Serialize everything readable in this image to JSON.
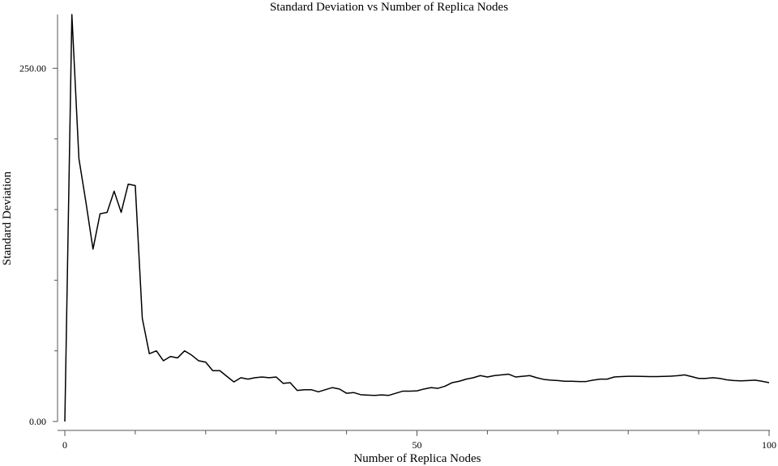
{
  "chart_data": {
    "type": "line",
    "title": "Standard Deviation vs Number of Replica Nodes",
    "xlabel": "Number of Replica Nodes",
    "ylabel": "Standard Deviation",
    "xlim": [
      0,
      100
    ],
    "ylim": [
      0,
      288
    ],
    "x_major_ticks": [
      0,
      50,
      100
    ],
    "x_major_tick_labels": [
      "0",
      "50",
      "100"
    ],
    "x_minor_ticks": [
      10,
      20,
      30,
      40,
      60,
      70,
      80,
      90
    ],
    "y_major_ticks": [
      0,
      250
    ],
    "y_major_tick_labels": [
      "0.00",
      "250.00"
    ],
    "y_minor_ticks": [
      50,
      100,
      150,
      200
    ],
    "grid": false,
    "legend": "none",
    "series": [
      {
        "color": "#000000",
        "x": [
          0,
          1,
          2,
          3,
          4,
          5,
          6,
          7,
          8,
          9,
          10,
          11,
          12,
          13,
          14,
          15,
          16,
          17,
          18,
          19,
          20,
          21,
          22,
          23,
          24,
          25,
          26,
          27,
          28,
          29,
          30,
          31,
          32,
          33,
          34,
          35,
          36,
          37,
          38,
          39,
          40,
          41,
          42,
          43,
          44,
          45,
          46,
          47,
          48,
          49,
          50,
          51,
          52,
          53,
          54,
          55,
          56,
          57,
          58,
          59,
          60,
          61,
          62,
          63,
          64,
          65,
          66,
          67,
          68,
          69,
          70,
          71,
          72,
          73,
          74,
          75,
          76,
          77,
          78,
          79,
          80,
          81,
          82,
          83,
          84,
          85,
          86,
          87,
          88,
          89,
          90,
          91,
          92,
          93,
          94,
          95,
          96,
          97,
          98,
          99,
          100
        ],
        "values": [
          0,
          288,
          186,
          155,
          122,
          147,
          148,
          163,
          148,
          168,
          167,
          73,
          48,
          50,
          43,
          46,
          45,
          50,
          47,
          43,
          42,
          36,
          36,
          32,
          28,
          31,
          30,
          31,
          31.5,
          31,
          31.5,
          27,
          27.5,
          22,
          22.5,
          22.5,
          21,
          22.5,
          24,
          23,
          20,
          20.5,
          19,
          18.7,
          18.5,
          18.8,
          18.5,
          20,
          21.5,
          21.5,
          21.7,
          23,
          24,
          23.5,
          25,
          27.5,
          28.5,
          30,
          31,
          32.5,
          31.5,
          32.5,
          33,
          33.5,
          31.5,
          32,
          32.5,
          31,
          29.8,
          29.3,
          29,
          28.5,
          28.5,
          28.3,
          28.3,
          29.3,
          30,
          30,
          31.5,
          31.8,
          32,
          32,
          31.9,
          31.8,
          31.8,
          31.9,
          32.1,
          32.4,
          33,
          31.8,
          30.5,
          30.5,
          31,
          30.5,
          29.5,
          29,
          28.8,
          29,
          29.3,
          28.5,
          27.5
        ]
      }
    ]
  }
}
